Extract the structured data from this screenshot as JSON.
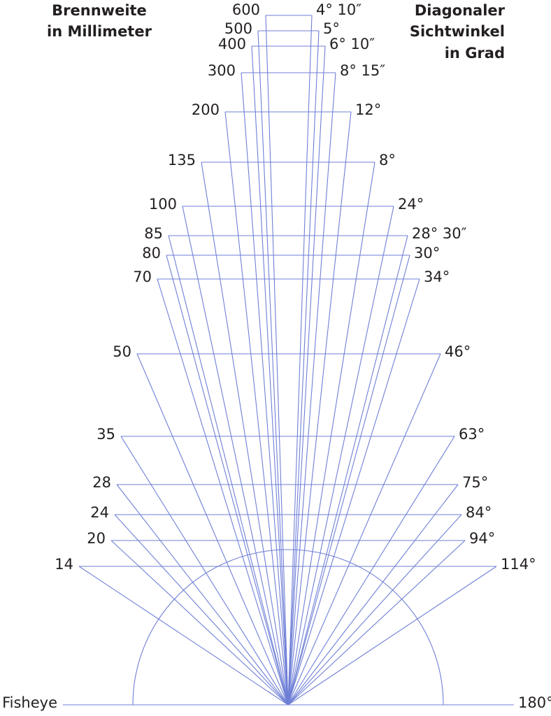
{
  "headers": {
    "left": [
      "Brennweite",
      "in Millimeter"
    ],
    "right": [
      "Diagonaler",
      "Sichtwinkel",
      "in Grad"
    ]
  },
  "rows": [
    {
      "focal": "600",
      "angle": "4° 10″"
    },
    {
      "focal": "500",
      "angle": "5°"
    },
    {
      "focal": "400",
      "angle": "6° 10″"
    },
    {
      "focal": "300",
      "angle": "8° 15″"
    },
    {
      "focal": "200",
      "angle": "12°"
    },
    {
      "focal": "135",
      "angle": "8°"
    },
    {
      "focal": "100",
      "angle": "24°"
    },
    {
      "focal": "85",
      "angle": "28° 30″"
    },
    {
      "focal": "80",
      "angle": "30°"
    },
    {
      "focal": "70",
      "angle": "34°"
    },
    {
      "focal": "50",
      "angle": "46°"
    },
    {
      "focal": "35",
      "angle": "63°"
    },
    {
      "focal": "28",
      "angle": "75°"
    },
    {
      "focal": "24",
      "angle": "84°"
    },
    {
      "focal": "20",
      "angle": "94°"
    },
    {
      "focal": "14",
      "angle": "114°"
    },
    {
      "focal": "Fisheye",
      "angle": "180°"
    }
  ]
}
